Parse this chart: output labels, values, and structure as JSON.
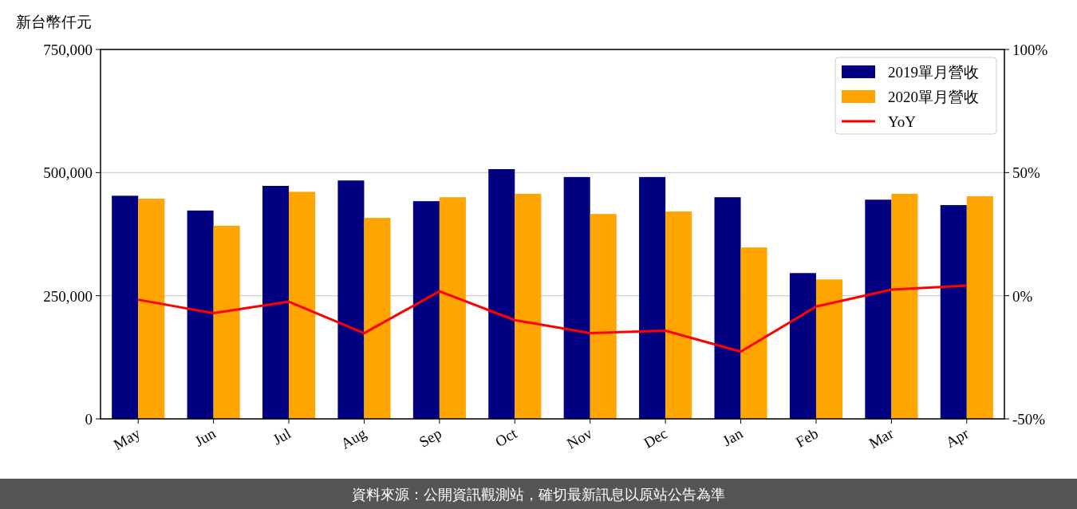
{
  "chart_data": {
    "type": "bar",
    "ylabel": "新台幣仟元",
    "categories": [
      "May",
      "Jun",
      "Jul",
      "Aug",
      "Sep",
      "Oct",
      "Nov",
      "Dec",
      "Jan",
      "Feb",
      "Mar",
      "Apr"
    ],
    "series": [
      {
        "name": "2019單月營收",
        "color": "#000080",
        "values": [
          453000,
          423000,
          473000,
          484000,
          442000,
          507000,
          491000,
          491000,
          450000,
          296000,
          445000,
          434000
        ]
      },
      {
        "name": "2020單月營收",
        "color": "#ffa500",
        "values": [
          447000,
          392000,
          461000,
          408000,
          450000,
          457000,
          416000,
          421000,
          348000,
          283000,
          457000,
          452000
        ]
      },
      {
        "name": "YoY",
        "type": "line",
        "axis": "y2",
        "color": "#ff0000",
        "values": [
          -1.6,
          -7.1,
          -2.4,
          -15.2,
          1.8,
          -9.9,
          -15.2,
          -14.2,
          -22.7,
          -4.4,
          2.5,
          4.1
        ]
      }
    ],
    "ylim": [
      0,
      750000
    ],
    "yticks": [
      {
        "value": 0,
        "label": "0"
      },
      {
        "value": 250000,
        "label": "250,000"
      },
      {
        "value": 500000,
        "label": "500,000"
      },
      {
        "value": 750000,
        "label": "750,000"
      }
    ],
    "y2lim": [
      -50,
      100
    ],
    "y2ticks": [
      {
        "value": -50,
        "label": "-50%"
      },
      {
        "value": 0,
        "label": "0%"
      },
      {
        "value": 50,
        "label": "50%"
      },
      {
        "value": 100,
        "label": "100%"
      }
    ],
    "grid": "y",
    "legend": "top right",
    "annotations": [
      "資料來源：公開資訊觀測站，確切最新訊息以原站公告為準"
    ]
  }
}
